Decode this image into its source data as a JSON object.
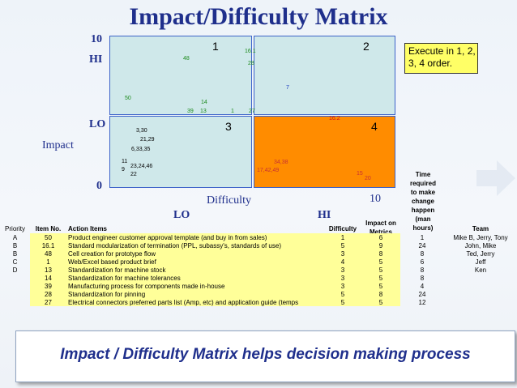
{
  "title": "Impact/Difficulty Matrix",
  "impact_axis": {
    "top_tick": "10",
    "hi": "HI",
    "lo": "LO",
    "label": "Impact",
    "zero": "0"
  },
  "difficulty_axis": {
    "label": "Difficulty",
    "lo": "LO",
    "hi": "HI",
    "end_tick": "10"
  },
  "quadrants": [
    {
      "number": "1",
      "color": "#cfe8ea"
    },
    {
      "number": "2",
      "color": "#cfe8ea"
    },
    {
      "number": "3",
      "color": "#cfe8ea"
    },
    {
      "number": "4",
      "color": "#ff8c00"
    }
  ],
  "points": [
    {
      "text": "16.1"
    },
    {
      "text": "48"
    },
    {
      "text": "28"
    },
    {
      "text": "7"
    },
    {
      "text": "50"
    },
    {
      "text": "14"
    },
    {
      "text": "39"
    },
    {
      "text": "13"
    },
    {
      "text": "1"
    },
    {
      "text": "27"
    },
    {
      "text": "16.2"
    },
    {
      "text": "3,30"
    },
    {
      "text": "21,29"
    },
    {
      "text": "6,33,35"
    },
    {
      "text": "11"
    },
    {
      "text": "23,24,46"
    },
    {
      "text": "9"
    },
    {
      "text": "22"
    },
    {
      "text": "34,38"
    },
    {
      "text": "17,42,49"
    },
    {
      "text": "15"
    },
    {
      "text": "20"
    }
  ],
  "callout": "Execute in 1, 2, 3, 4 order.",
  "time_header": [
    "Time",
    "required",
    "to make",
    "change",
    "happen",
    "(man",
    "hours)"
  ],
  "table": {
    "headers": {
      "priority": "Priority",
      "item_no": "Item No.",
      "action": "Action Items",
      "difficulty": "Difficulty",
      "impact": "Impact on",
      "impact2": "Metrics",
      "team": "Team"
    },
    "rows": [
      {
        "priority": "A",
        "item": "50",
        "action": "Product engineer customer approval template (and buy in from sales)",
        "difficulty": "1",
        "impact": "6",
        "time": "1",
        "team": "Mike B, Jerry, Tony"
      },
      {
        "priority": "B",
        "item": "16.1",
        "action": "Standard modularization of termination (PPL, subassy's, standards of use)",
        "difficulty": "5",
        "impact": "9",
        "time": "24",
        "team": "John, Mike"
      },
      {
        "priority": "B",
        "item": "48",
        "action": "Cell creation for prototype flow",
        "difficulty": "3",
        "impact": "8",
        "time": "8",
        "team": "Ted, Jerry"
      },
      {
        "priority": "C",
        "item": "1",
        "action": "Web/Excel based product brief",
        "difficulty": "4",
        "impact": "5",
        "time": "6",
        "team": "Jeff"
      },
      {
        "priority": "D",
        "item": "13",
        "action": "Standardization for machine stock",
        "difficulty": "3",
        "impact": "5",
        "time": "8",
        "team": "Ken"
      },
      {
        "priority": "",
        "item": "14",
        "action": "Standardization for machine tolerances",
        "difficulty": "3",
        "impact": "5",
        "time": "8",
        "team": ""
      },
      {
        "priority": "",
        "item": "39",
        "action": "Manufacturing process for components made in-house",
        "difficulty": "3",
        "impact": "5",
        "time": "4",
        "team": ""
      },
      {
        "priority": "",
        "item": "28",
        "action": "Standardization for pinning",
        "difficulty": "5",
        "impact": "8",
        "time": "24",
        "team": ""
      },
      {
        "priority": "",
        "item": "27",
        "action": "Electrical connectors preferred parts list (Amp, etc) and application guide (temps",
        "difficulty": "5",
        "impact": "5",
        "time": "12",
        "team": ""
      }
    ]
  },
  "banner": "Impact / Difficulty Matrix helps decision making process"
}
